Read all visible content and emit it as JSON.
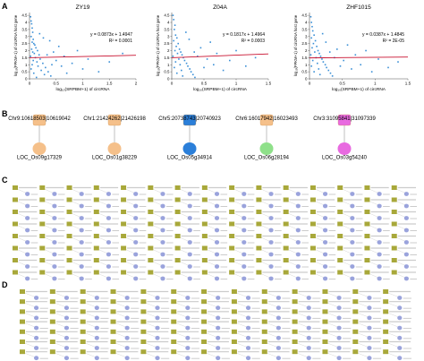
{
  "panels": {
    "a": "A",
    "b": "B",
    "c": "C",
    "d": "D"
  },
  "chart_data": [
    {
      "type": "scatter",
      "title": "ZY19",
      "xlabel": "log₁₀(SRPBM+1) of circRNA",
      "ylabel": "log₁₀(FPKM+1) of circRNA host gene",
      "equation": "y = 0.0873x + 1.4947",
      "r2": "R² = 0.0001",
      "xlim": [
        0,
        2
      ],
      "ylim": [
        0,
        4.7
      ],
      "xticks": [
        "0",
        "0.5",
        "1",
        "1.5",
        "2"
      ],
      "yticks": [
        "0",
        "0.5",
        "1",
        "1.5",
        "2",
        "2.5",
        "3",
        "3.5",
        "4",
        "4.5"
      ],
      "trend": {
        "slope": 0.0873,
        "intercept": 1.4947
      },
      "colors": {
        "points": "#3a8fd6",
        "trend": "#c8102e"
      },
      "points": [
        [
          0.02,
          4.4
        ],
        [
          0.03,
          4.1
        ],
        [
          0.04,
          3.9
        ],
        [
          0.05,
          3.6
        ],
        [
          0.06,
          3.3
        ],
        [
          0.03,
          3.0
        ],
        [
          0.07,
          2.8
        ],
        [
          0.05,
          2.6
        ],
        [
          0.08,
          2.5
        ],
        [
          0.1,
          2.4
        ],
        [
          0.12,
          2.2
        ],
        [
          0.04,
          2.1
        ],
        [
          0.15,
          2.0
        ],
        [
          0.06,
          1.9
        ],
        [
          0.09,
          1.8
        ],
        [
          0.18,
          1.7
        ],
        [
          0.02,
          1.6
        ],
        [
          0.11,
          1.5
        ],
        [
          0.2,
          1.4
        ],
        [
          0.07,
          1.3
        ],
        [
          0.14,
          1.2
        ],
        [
          0.25,
          1.1
        ],
        [
          0.05,
          1.0
        ],
        [
          0.16,
          0.9
        ],
        [
          0.3,
          0.8
        ],
        [
          0.03,
          0.7
        ],
        [
          0.22,
          0.6
        ],
        [
          0.35,
          0.5
        ],
        [
          0.08,
          0.4
        ],
        [
          0.28,
          0.3
        ],
        [
          0.4,
          0.2
        ],
        [
          0.13,
          0.1
        ],
        [
          0.45,
          1.9
        ],
        [
          0.5,
          1.3
        ],
        [
          0.55,
          2.3
        ],
        [
          0.6,
          0.9
        ],
        [
          0.65,
          1.6
        ],
        [
          0.7,
          0.4
        ],
        [
          0.8,
          1.1
        ],
        [
          0.9,
          2.0
        ],
        [
          1.0,
          0.7
        ],
        [
          1.1,
          1.4
        ],
        [
          1.3,
          0.5
        ],
        [
          1.5,
          1.2
        ],
        [
          1.75,
          1.8
        ],
        [
          0.38,
          2.7
        ],
        [
          0.42,
          1.0
        ],
        [
          0.19,
          3.2
        ],
        [
          0.26,
          2.9
        ],
        [
          0.33,
          1.7
        ]
      ]
    },
    {
      "type": "scatter",
      "title": "Z04A",
      "xlabel": "log₁₀(SRPBM+1) of circRNA",
      "ylabel": "log₁₀(FPKM+1) of circRNA host gene",
      "equation": "y = 0.1817x + 1.4964",
      "r2": "R² = 0.0003",
      "xlim": [
        0,
        1.5
      ],
      "ylim": [
        0,
        4.7
      ],
      "xticks": [
        "0",
        "0.5",
        "1",
        "1.5"
      ],
      "yticks": [
        "0",
        "0.5",
        "1",
        "1.5",
        "2",
        "2.5",
        "3",
        "3.5",
        "4",
        "4.5"
      ],
      "trend": {
        "slope": 0.1817,
        "intercept": 1.4964
      },
      "colors": {
        "points": "#3a8fd6",
        "trend": "#c8102e"
      },
      "points": [
        [
          0.02,
          4.5
        ],
        [
          0.03,
          4.2
        ],
        [
          0.05,
          3.8
        ],
        [
          0.04,
          3.5
        ],
        [
          0.06,
          3.1
        ],
        [
          0.08,
          2.9
        ],
        [
          0.03,
          2.7
        ],
        [
          0.1,
          2.5
        ],
        [
          0.07,
          2.3
        ],
        [
          0.12,
          2.1
        ],
        [
          0.05,
          2.0
        ],
        [
          0.14,
          1.9
        ],
        [
          0.09,
          1.8
        ],
        [
          0.16,
          1.7
        ],
        [
          0.02,
          1.6
        ],
        [
          0.18,
          1.5
        ],
        [
          0.11,
          1.4
        ],
        [
          0.2,
          1.3
        ],
        [
          0.06,
          1.2
        ],
        [
          0.23,
          1.1
        ],
        [
          0.13,
          1.0
        ],
        [
          0.25,
          0.9
        ],
        [
          0.04,
          0.8
        ],
        [
          0.28,
          0.7
        ],
        [
          0.15,
          0.6
        ],
        [
          0.3,
          0.5
        ],
        [
          0.08,
          0.4
        ],
        [
          0.33,
          0.3
        ],
        [
          0.17,
          0.2
        ],
        [
          0.36,
          0.1
        ],
        [
          0.4,
          1.6
        ],
        [
          0.45,
          2.2
        ],
        [
          0.5,
          0.8
        ],
        [
          0.55,
          1.4
        ],
        [
          0.6,
          2.6
        ],
        [
          0.65,
          1.0
        ],
        [
          0.7,
          1.8
        ],
        [
          0.8,
          0.6
        ],
        [
          0.9,
          1.3
        ],
        [
          1.0,
          2.0
        ],
        [
          1.15,
          0.9
        ],
        [
          1.3,
          1.5
        ],
        [
          0.22,
          3.3
        ],
        [
          0.27,
          2.8
        ],
        [
          0.35,
          1.9
        ]
      ]
    },
    {
      "type": "scatter",
      "title": "ZHF1015",
      "xlabel": "log₁₀(SRPBM+1) of circRNA",
      "ylabel": "log₁₀(FPKM+1) of circRNA host gene",
      "equation": "y = 0.0387x + 1.4845",
      "r2": "R² = 2E-05",
      "xlim": [
        0,
        1.5
      ],
      "ylim": [
        0,
        4.7
      ],
      "xticks": [
        "0",
        "0.5",
        "1",
        "1.5"
      ],
      "yticks": [
        "0",
        "0.5",
        "1",
        "1.5",
        "2",
        "2.5",
        "3",
        "3.5",
        "4",
        "4.5"
      ],
      "trend": {
        "slope": 0.0387,
        "intercept": 1.4845
      },
      "colors": {
        "points": "#3a8fd6",
        "trend": "#c8102e"
      },
      "points": [
        [
          0.02,
          4.4
        ],
        [
          0.03,
          4.0
        ],
        [
          0.04,
          3.7
        ],
        [
          0.05,
          3.4
        ],
        [
          0.07,
          3.1
        ],
        [
          0.03,
          2.9
        ],
        [
          0.09,
          2.7
        ],
        [
          0.06,
          2.5
        ],
        [
          0.11,
          2.3
        ],
        [
          0.04,
          2.2
        ],
        [
          0.13,
          2.0
        ],
        [
          0.08,
          1.9
        ],
        [
          0.15,
          1.8
        ],
        [
          0.02,
          1.7
        ],
        [
          0.17,
          1.6
        ],
        [
          0.1,
          1.5
        ],
        [
          0.19,
          1.4
        ],
        [
          0.05,
          1.3
        ],
        [
          0.21,
          1.2
        ],
        [
          0.12,
          1.1
        ],
        [
          0.24,
          1.0
        ],
        [
          0.03,
          0.9
        ],
        [
          0.26,
          0.8
        ],
        [
          0.14,
          0.7
        ],
        [
          0.29,
          0.6
        ],
        [
          0.07,
          0.5
        ],
        [
          0.32,
          0.4
        ],
        [
          0.16,
          0.3
        ],
        [
          0.35,
          0.2
        ],
        [
          0.38,
          1.5
        ],
        [
          0.42,
          2.1
        ],
        [
          0.47,
          0.9
        ],
        [
          0.52,
          1.3
        ],
        [
          0.58,
          2.4
        ],
        [
          0.64,
          0.7
        ],
        [
          0.7,
          1.7
        ],
        [
          0.78,
          1.0
        ],
        [
          0.86,
          2.0
        ],
        [
          0.95,
          0.5
        ],
        [
          1.05,
          1.4
        ],
        [
          1.2,
          0.8
        ],
        [
          1.35,
          1.2
        ],
        [
          0.2,
          3.2
        ],
        [
          0.25,
          2.6
        ],
        [
          0.31,
          1.9
        ]
      ]
    }
  ],
  "network_b": {
    "circ_color": "#f5c08a",
    "circ_border": "#d99a55",
    "pairs": [
      {
        "circ": "Chr9:10618503|10619042",
        "gene": "LOC_Os09g17329",
        "shape_color": "#f5c08a",
        "gene_color": "#f5c08a"
      },
      {
        "circ": "Chr1:21424262|21426198",
        "gene": "LOC_Os01g38229",
        "shape_color": "#f5c08a",
        "gene_color": "#f5c08a"
      },
      {
        "circ": "Chr5:20738743|20740923",
        "gene": "LOC_Os05g34914",
        "shape_color": "#2b7fd9",
        "gene_color": "#2b7fd9"
      },
      {
        "circ": "Chr6:16017942|16023493",
        "gene": "LOC_Os06g28194",
        "shape_color": "#f5c08a",
        "gene_color": "#8fe08a"
      },
      {
        "circ": "Chr3:31095841|31097339",
        "gene": "LOC_Os03g54240",
        "shape_color": "#e86ae0",
        "gene_color": "#e86ae0"
      }
    ]
  },
  "network_c": {
    "node_square_color": "#a8a83a",
    "node_circle_color": "#9aa3dc",
    "rows": 8,
    "pairs_per_row": 15
  },
  "network_d": {
    "node_square_color": "#a8a83a",
    "node_circle_color": "#9aa3dc",
    "rows": 7,
    "pairs_per_row": 13
  }
}
